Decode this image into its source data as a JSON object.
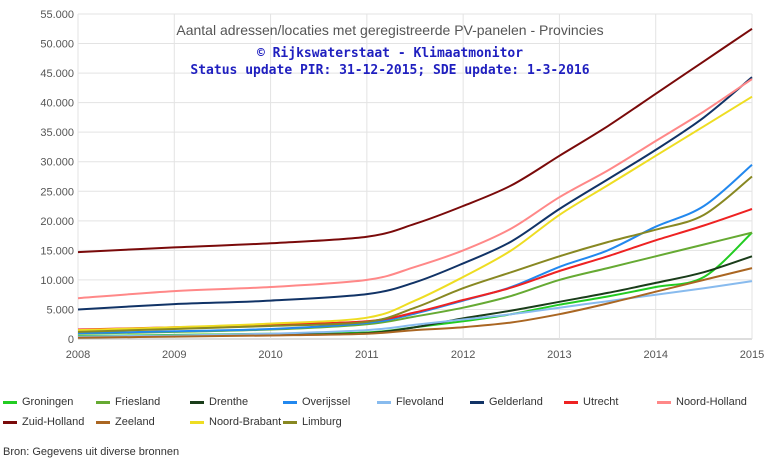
{
  "chart_data": {
    "type": "line",
    "title": "Aantal adressen/locaties met geregistreerde PV-panelen - Provincies",
    "subtitle_1": "© Rijkswaterstaat - Klimaatmonitor",
    "subtitle_2": "Status update PIR: 31-12-2015; SDE update: 1-3-2016",
    "x_ticks": [
      "2008",
      "2009",
      "2010",
      "2011",
      "2012",
      "2013",
      "2014",
      "2015"
    ],
    "y_ticks": [
      "0",
      "5.000",
      "10.000",
      "15.000",
      "20.000",
      "25.000",
      "30.000",
      "35.000",
      "40.000",
      "45.000",
      "50.000",
      "55.000"
    ],
    "xlim": [
      2008,
      2015
    ],
    "ylim": [
      0,
      55000
    ],
    "grid": true,
    "legend_position": "bottom",
    "series": [
      {
        "name": "Groningen",
        "color": "#22cc22",
        "x": [
          2008,
          2009,
          2010,
          2011,
          2011.5,
          2012,
          2012.5,
          2013,
          2013.5,
          2014,
          2014.5,
          2015
        ],
        "values": [
          500,
          700,
          900,
          1100,
          2000,
          3000,
          4200,
          5800,
          7200,
          8800,
          10500,
          18000
        ]
      },
      {
        "name": "Friesland",
        "color": "#66aa33",
        "x": [
          2008,
          2009,
          2010,
          2011,
          2011.5,
          2012,
          2012.5,
          2013,
          2013.5,
          2014,
          2014.5,
          2015
        ],
        "values": [
          900,
          1200,
          1600,
          2500,
          3800,
          5300,
          7300,
          10000,
          12000,
          14000,
          16000,
          18000
        ]
      },
      {
        "name": "Drenthe",
        "color": "#1a3d1a",
        "x": [
          2008,
          2009,
          2010,
          2011,
          2011.5,
          2012,
          2012.5,
          2013,
          2013.5,
          2014,
          2014.5,
          2015
        ],
        "values": [
          300,
          500,
          700,
          1000,
          2000,
          3500,
          4800,
          6300,
          7800,
          9500,
          11300,
          14000
        ]
      },
      {
        "name": "Overijssel",
        "color": "#2288ee",
        "x": [
          2008,
          2009,
          2010,
          2011,
          2011.5,
          2012,
          2012.5,
          2013,
          2013.5,
          2014,
          2014.5,
          2015
        ],
        "values": [
          1000,
          1300,
          1700,
          2700,
          4300,
          6500,
          8800,
          12200,
          15000,
          19000,
          22500,
          29500
        ]
      },
      {
        "name": "Flevoland",
        "color": "#88bbee",
        "x": [
          2008,
          2009,
          2010,
          2011,
          2011.5,
          2012,
          2012.5,
          2013,
          2013.5,
          2014,
          2014.5,
          2015
        ],
        "values": [
          400,
          600,
          900,
          1500,
          2400,
          3300,
          4200,
          5300,
          6400,
          7500,
          8600,
          9800
        ]
      },
      {
        "name": "Gelderland",
        "color": "#113366",
        "x": [
          2008,
          2009,
          2010,
          2011,
          2011.5,
          2012,
          2012.5,
          2013,
          2013.5,
          2014,
          2014.5,
          2015
        ],
        "values": [
          5000,
          5900,
          6500,
          7600,
          9600,
          12800,
          16500,
          22000,
          27000,
          32000,
          37500,
          44300
        ]
      },
      {
        "name": "Utrecht",
        "color": "#ee2222",
        "x": [
          2008,
          2009,
          2010,
          2011,
          2011.5,
          2012,
          2012.5,
          2013,
          2013.5,
          2014,
          2014.5,
          2015
        ],
        "values": [
          1600,
          2000,
          2400,
          3000,
          4500,
          6600,
          8700,
          11500,
          14000,
          16700,
          19200,
          22000
        ]
      },
      {
        "name": "Noord-Holland",
        "color": "#ff8888",
        "x": [
          2008,
          2009,
          2010,
          2011,
          2011.5,
          2012,
          2012.5,
          2013,
          2013.5,
          2014,
          2014.5,
          2015
        ],
        "values": [
          6900,
          8100,
          8800,
          10000,
          12200,
          15000,
          18700,
          24000,
          28500,
          33500,
          38500,
          44000
        ]
      },
      {
        "name": "Zuid-Holland",
        "color": "#7a0a0a",
        "x": [
          2008,
          2009,
          2010,
          2011,
          2011.5,
          2012,
          2012.5,
          2013,
          2013.5,
          2014,
          2014.5,
          2015
        ],
        "values": [
          14700,
          15500,
          16200,
          17300,
          19500,
          22500,
          26000,
          31000,
          36000,
          41500,
          47000,
          52500
        ]
      },
      {
        "name": "Zeeland",
        "color": "#aa6622",
        "x": [
          2008,
          2009,
          2010,
          2011,
          2011.5,
          2012,
          2012.5,
          2013,
          2013.5,
          2014,
          2014.5,
          2015
        ],
        "values": [
          200,
          400,
          600,
          900,
          1500,
          2000,
          2800,
          4200,
          6000,
          8000,
          10000,
          12000
        ]
      },
      {
        "name": "Noord-Brabant",
        "color": "#eedd22",
        "x": [
          2008,
          2009,
          2010,
          2011,
          2011.5,
          2012,
          2012.5,
          2013,
          2013.5,
          2014,
          2014.5,
          2015
        ],
        "values": [
          1500,
          2000,
          2600,
          3600,
          6500,
          10500,
          15000,
          21000,
          26000,
          31000,
          36000,
          41000
        ]
      },
      {
        "name": "Limburg",
        "color": "#888822",
        "x": [
          2008,
          2009,
          2010,
          2011,
          2011.5,
          2012,
          2012.5,
          2013,
          2013.5,
          2014,
          2014.5,
          2015
        ],
        "values": [
          1200,
          1700,
          2200,
          2900,
          5300,
          8600,
          11300,
          14000,
          16400,
          18500,
          21000,
          27500
        ]
      }
    ]
  },
  "source_text": "Bron: Gegevens uit diverse bronnen"
}
